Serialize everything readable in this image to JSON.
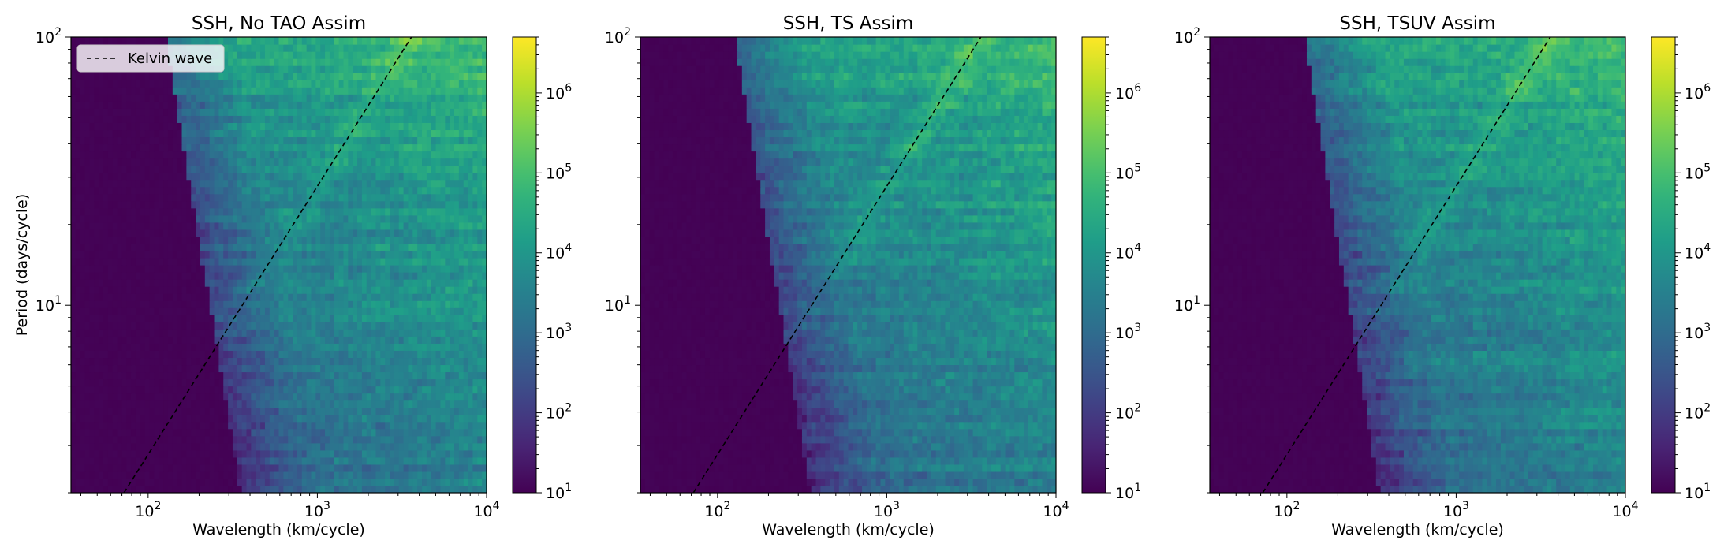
{
  "figure": {
    "colormap": "viridis",
    "color_scale": "log",
    "colorbar": {
      "min": 10,
      "max": 5000000,
      "ticks": [
        10,
        100,
        1000,
        10000,
        100000,
        1000000
      ]
    },
    "x_axis": {
      "label": "Wavelength (km/cycle)",
      "scale": "log",
      "range": [
        35,
        10000
      ],
      "ticks": [
        100,
        1000,
        10000
      ],
      "tick_labels": [
        "10^2",
        "10^3",
        "10^4"
      ]
    },
    "y_axis": {
      "label": "Period (days/cycle)",
      "scale": "log",
      "range": [
        2,
        100
      ],
      "ticks": [
        10,
        100
      ],
      "tick_labels": [
        "10^1",
        "10^2"
      ]
    },
    "reference_line": {
      "name": "Kelvin wave",
      "style": "dashed",
      "color": "#000000",
      "wavelength_at_period_2": 72,
      "wavelength_at_period_100": 3600
    },
    "legend": {
      "location": "upper-left",
      "entries": [
        "Kelvin wave"
      ]
    }
  },
  "chart_data": [
    {
      "type": "heatmap",
      "title": "SSH, No TAO Assim",
      "xlabel": "Wavelength (km/cycle)",
      "ylabel": "Period (days/cycle)",
      "xscale": "log",
      "yscale": "log",
      "xlim": [
        35,
        10000
      ],
      "ylim": [
        2,
        100
      ],
      "clim": [
        10,
        5000000
      ],
      "variant": 0,
      "show_ylabel": true,
      "show_legend": true
    },
    {
      "type": "heatmap",
      "title": "SSH, TS Assim",
      "xlabel": "Wavelength (km/cycle)",
      "ylabel": "",
      "xscale": "log",
      "yscale": "log",
      "xlim": [
        35,
        10000
      ],
      "ylim": [
        2,
        100
      ],
      "clim": [
        10,
        5000000
      ],
      "variant": 1,
      "show_ylabel": false,
      "show_legend": false
    },
    {
      "type": "heatmap",
      "title": "SSH, TSUV Assim",
      "xlabel": "Wavelength (km/cycle)",
      "ylabel": "",
      "xscale": "log",
      "yscale": "log",
      "xlim": [
        35,
        10000
      ],
      "ylim": [
        2,
        100
      ],
      "clim": [
        10,
        5000000
      ],
      "variant": 2,
      "show_ylabel": false,
      "show_legend": false
    }
  ]
}
